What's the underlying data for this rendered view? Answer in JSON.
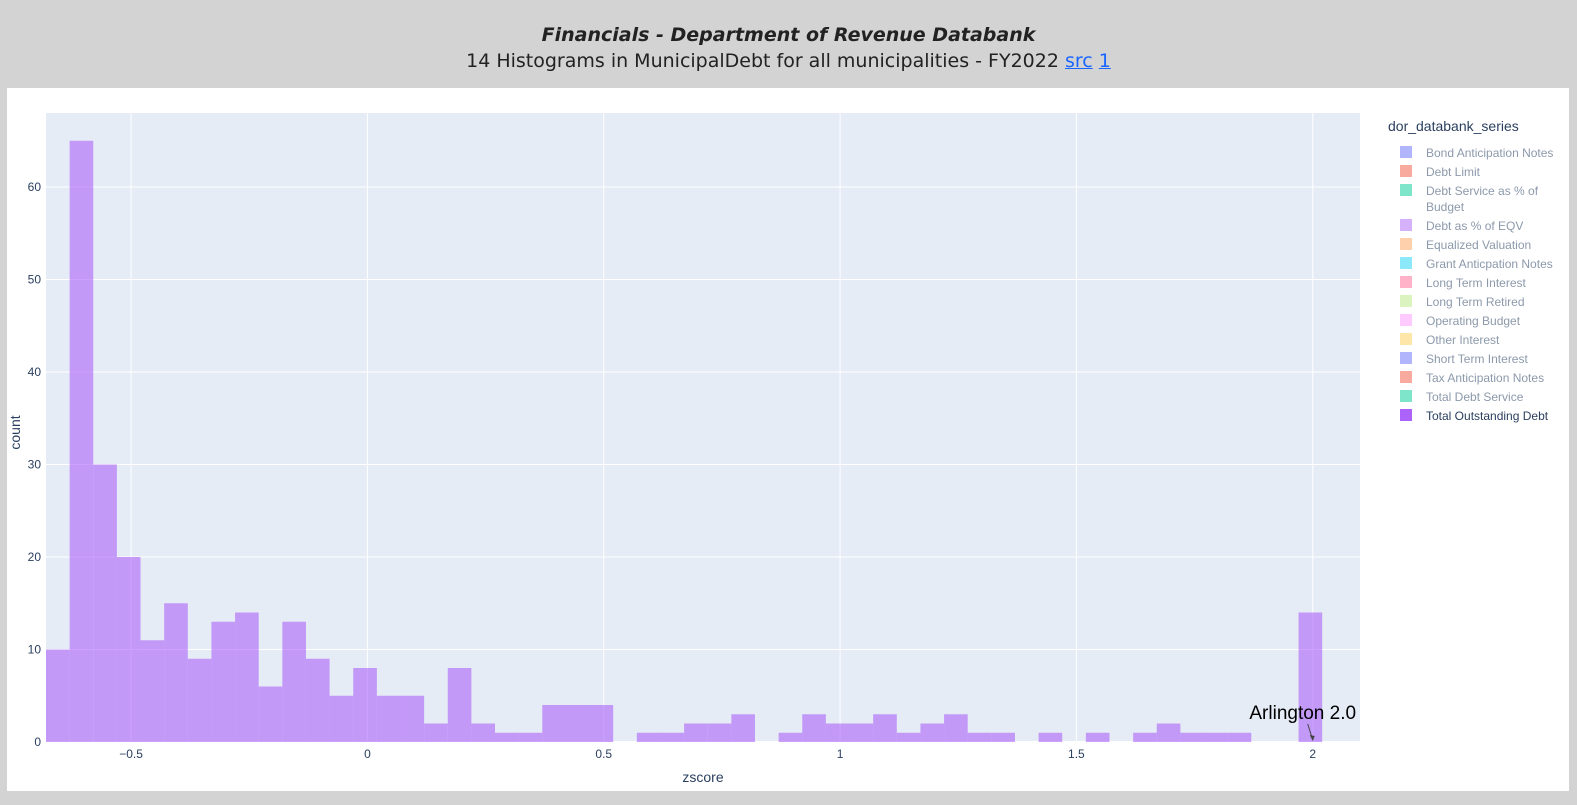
{
  "header": {
    "title": "Financials - Department of Revenue Databank",
    "subtitle": "14 Histograms in MunicipalDebt for all municipalities - FY2022",
    "link_src": "src",
    "link_1": "1"
  },
  "colors": {
    "plot_bg": "#e5ecf6",
    "bar_active": "#ab63fa",
    "legend_text_active": "#2a3f5f",
    "legend_text_inactive": "#8c99ab"
  },
  "chart_data": {
    "type": "bar",
    "xlabel": "zscore",
    "ylabel": "count",
    "xlim": [
      -0.68,
      2.1
    ],
    "ylim": [
      0,
      68
    ],
    "bin_width": 0.05,
    "x_ticks": [
      -0.5,
      0,
      0.5,
      1,
      1.5,
      2
    ],
    "x_tick_labels": [
      "−0.5",
      "0",
      "0.5",
      "1",
      "1.5",
      "2"
    ],
    "y_ticks": [
      0,
      10,
      20,
      30,
      40,
      50,
      60
    ],
    "grid": true,
    "bin_starts": [
      -0.68,
      -0.63,
      -0.58,
      -0.53,
      -0.48,
      -0.43,
      -0.38,
      -0.33,
      -0.28,
      -0.23,
      -0.18,
      -0.13,
      -0.08,
      -0.03,
      0.02,
      0.07,
      0.12,
      0.17,
      0.22,
      0.27,
      0.32,
      0.37,
      0.42,
      0.47,
      0.52,
      0.57,
      0.62,
      0.67,
      0.72,
      0.77,
      0.82,
      0.87,
      0.92,
      0.97,
      1.02,
      1.07,
      1.12,
      1.17,
      1.22,
      1.27,
      1.32,
      1.37,
      1.42,
      1.47,
      1.52,
      1.57,
      1.62,
      1.67,
      1.72,
      1.77,
      1.82,
      1.87,
      1.92,
      1.97,
      2.02
    ],
    "values": [
      10,
      65,
      30,
      20,
      11,
      15,
      9,
      13,
      14,
      6,
      13,
      9,
      5,
      8,
      5,
      5,
      2,
      8,
      2,
      1,
      1,
      4,
      4,
      4,
      0,
      1,
      1,
      2,
      2,
      3,
      0,
      1,
      3,
      2,
      2,
      3,
      1,
      2,
      3,
      1,
      1,
      0,
      1,
      0,
      1,
      0,
      1,
      2,
      1,
      1,
      1,
      0,
      0,
      14,
      0
    ],
    "legend_title": "dor_databank_series",
    "legend_placement": "right",
    "legend": [
      {
        "label": "Bond Anticipation Notes",
        "color": "#636efa",
        "active": false
      },
      {
        "label": "Debt Limit",
        "color": "#ef553b",
        "active": false
      },
      {
        "label": "Debt Service as % of Budget",
        "color": "#00cc96",
        "active": false,
        "lines": [
          "Debt Service as % of",
          "Budget"
        ]
      },
      {
        "label": "Debt as % of EQV",
        "color": "#ab63fa",
        "active": false
      },
      {
        "label": "Equalized Valuation",
        "color": "#ffa15a",
        "active": false
      },
      {
        "label": "Grant Anticpation Notes",
        "color": "#19d3f3",
        "active": false
      },
      {
        "label": "Long Term Interest",
        "color": "#ff6692",
        "active": false
      },
      {
        "label": "Long Term Retired",
        "color": "#b6e880",
        "active": false
      },
      {
        "label": "Operating Budget",
        "color": "#ff97ff",
        "active": false
      },
      {
        "label": "Other Interest",
        "color": "#fecb52",
        "active": false
      },
      {
        "label": "Short Term Interest",
        "color": "#636efa",
        "active": false
      },
      {
        "label": "Tax Anticipation Notes",
        "color": "#ef553b",
        "active": false
      },
      {
        "label": "Total Debt Service",
        "color": "#00cc96",
        "active": false
      },
      {
        "label": "Total Outstanding Debt",
        "color": "#ab63fa",
        "active": true
      }
    ],
    "annotation": {
      "text": "Arlington 2.0",
      "x": 2.0,
      "y": 0
    }
  }
}
